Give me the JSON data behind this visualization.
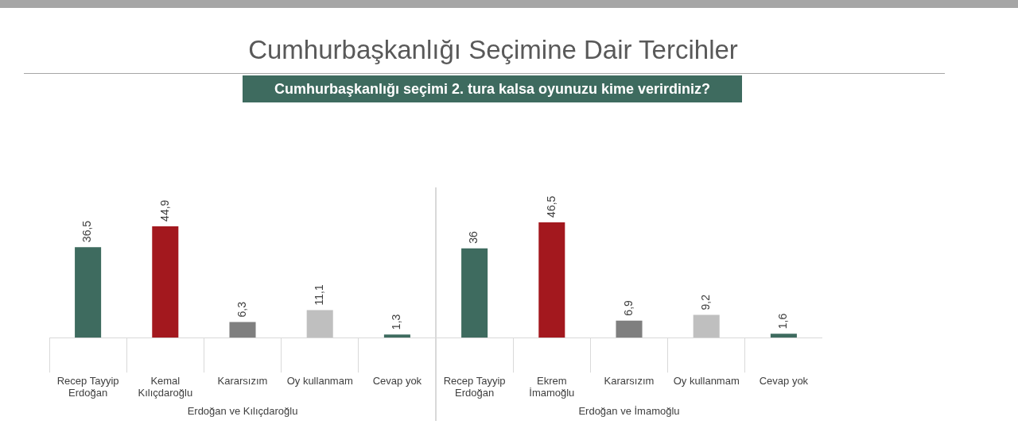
{
  "chart_data": [
    {
      "type": "bar",
      "title": "Cumhurbaşkanlığı Seçimine Dair Tercihler",
      "subtitle": "Cumhurbaşkanlığı seçimi 2. tura kalsa oyunuzu kime verirdiniz?",
      "xlabel": "Erdoğan ve Kılıçdaroğlu",
      "categories": [
        "Recep Tayyip Erdoğan",
        "Kemal Kılıçdaroğlu",
        "Kararsızım",
        "Oy kullanmam",
        "Cevap yok"
      ],
      "values": [
        36.5,
        44.9,
        6.3,
        11.1,
        1.3
      ],
      "value_labels": [
        "36,5",
        "44,9",
        "6,3",
        "11,1",
        "1,3"
      ],
      "colors": [
        "#3e6b5f",
        "#a3181e",
        "#7f7f7f",
        "#bfbfbf",
        "#3e6b5f"
      ],
      "tick_labels": "x",
      "grid": false,
      "legend": false
    },
    {
      "type": "bar",
      "xlabel": "Erdoğan ve İmamoğlu",
      "categories": [
        "Recep Tayyip Erdoğan",
        "Ekrem İmamoğlu",
        "Kararsızım",
        "Oy kullanmam",
        "Cevap yok"
      ],
      "values": [
        36,
        46.5,
        6.9,
        9.2,
        1.6
      ],
      "value_labels": [
        "36",
        "46,5",
        "6,9",
        "9,2",
        "1,6"
      ],
      "colors": [
        "#3e6b5f",
        "#a3181e",
        "#7f7f7f",
        "#bfbfbf",
        "#3e6b5f"
      ],
      "tick_labels": "x",
      "grid": false,
      "legend": false
    }
  ]
}
